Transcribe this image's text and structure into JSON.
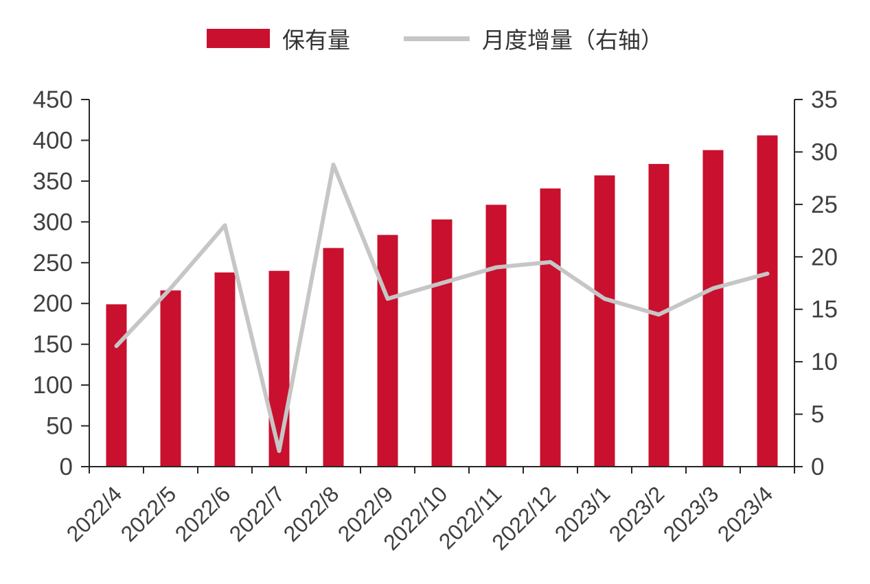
{
  "legend": {
    "items": [
      {
        "label": "保有量",
        "swatch": "bar",
        "color": "#C9102E"
      },
      {
        "label": "月度增量（右轴）",
        "swatch": "line",
        "color": "#C6C6C6"
      }
    ]
  },
  "chart_data": {
    "type": "bar+line combo",
    "title": "",
    "categories": [
      "2022/4",
      "2022/5",
      "2022/6",
      "2022/7",
      "2022/8",
      "2022/9",
      "2022/10",
      "2022/11",
      "2022/12",
      "2023/1",
      "2023/2",
      "2023/3",
      "2023/4"
    ],
    "series": [
      {
        "name": "保有量",
        "type": "bar",
        "axis": "left",
        "color": "#C9102E",
        "values": [
          199,
          216,
          238,
          240,
          268,
          284,
          303,
          321,
          341,
          357,
          371,
          388,
          406
        ]
      },
      {
        "name": "月度增量（右轴）",
        "type": "line",
        "axis": "right",
        "color": "#C6C6C6",
        "values": [
          11.5,
          17,
          23,
          1.5,
          28.8,
          16,
          17.5,
          19,
          19.5,
          16,
          14.5,
          17,
          18.4
        ]
      }
    ],
    "left_axis": {
      "min": 0,
      "max": 450,
      "step": 50,
      "tick_labels": [
        "0",
        "50",
        "100",
        "150",
        "200",
        "250",
        "300",
        "350",
        "400",
        "450"
      ]
    },
    "right_axis": {
      "min": 0,
      "max": 35,
      "step": 5,
      "tick_labels": [
        "0",
        "5",
        "10",
        "15",
        "20",
        "25",
        "30",
        "35"
      ]
    },
    "grid": "off",
    "legend_position": "top-center",
    "x_label_rotation_deg": -45,
    "axis_color": "#262626",
    "text_color": "#3f3f3f"
  }
}
